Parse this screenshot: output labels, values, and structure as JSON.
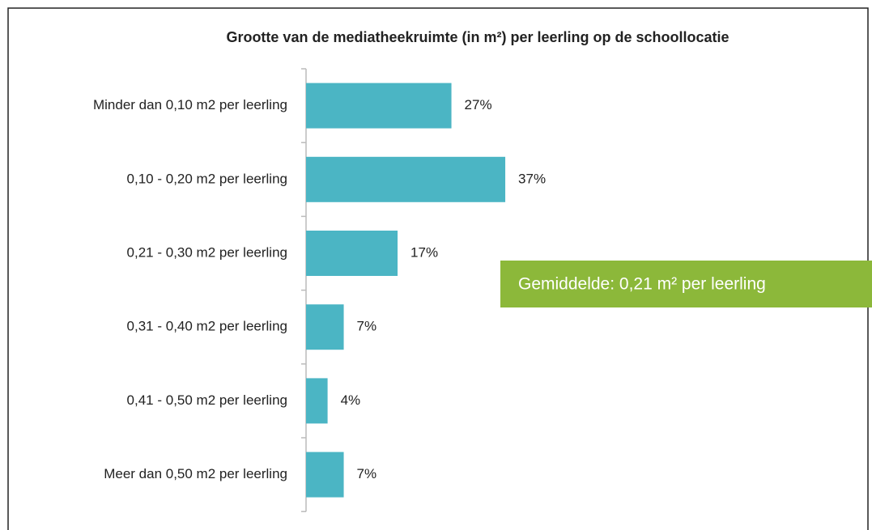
{
  "chart_data": {
    "type": "barh",
    "title": "Grootte van de mediatheekruimte (in m²) per leerling op de schoollocatie",
    "categories": [
      "Minder dan 0,10 m2 per leerling",
      "0,10 - 0,20 m2 per leerling",
      "0,21 - 0,30 m2 per leerling",
      "0,31 - 0,40 m2 per leerling",
      "0,41 - 0,50 m2 per leerling",
      "Meer dan 0,50 m2 per leerling"
    ],
    "values": [
      27,
      37,
      17,
      7,
      4,
      7
    ],
    "value_labels": [
      "27%",
      "37%",
      "17%",
      "7%",
      "4%",
      "7%"
    ],
    "color": "#4bb5c4",
    "annotation": "Gemiddelde: 0,21 m² per leerling",
    "annotation_color": "#8cb83a"
  }
}
